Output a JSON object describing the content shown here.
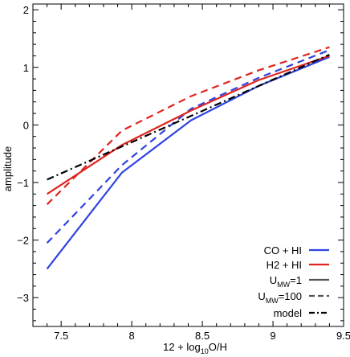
{
  "chart_data": {
    "type": "line",
    "xlabel_prefix": "12 + log",
    "xlabel_sub": "10",
    "xlabel_suffix": "O/H",
    "ylabel": "amplitude",
    "xlim": [
      7.3,
      9.5
    ],
    "ylim": [
      -3.5,
      2.1
    ],
    "xticks": [
      7.5,
      8,
      8.5,
      9,
      9.5
    ],
    "xtick_labels": [
      "7.5",
      "8",
      "8.5",
      "9",
      "9.5"
    ],
    "yticks": [
      -3,
      -2,
      -1,
      0,
      1,
      2
    ],
    "ytick_labels": [
      "−3",
      "−2",
      "−1",
      "0",
      "1",
      "2"
    ],
    "grid": false,
    "legend_position": "bottom-right",
    "colors": {
      "co_hi": "#2f43e0",
      "h2_hi": "#e0241f",
      "model": "#000000",
      "umw_key": "#555555"
    },
    "series": [
      {
        "key": "co_hi",
        "color": "#2f43e0",
        "dash": "solid",
        "x": [
          7.4,
          7.93,
          8.42,
          8.9,
          9.4
        ],
        "y": [
          -2.5,
          -0.83,
          0.08,
          0.68,
          1.18
        ]
      },
      {
        "key": "co_hi",
        "color": "#2f43e0",
        "dash": "dashed",
        "x": [
          7.4,
          7.93,
          8.42,
          8.9,
          9.4
        ],
        "y": [
          -2.05,
          -0.7,
          0.28,
          0.82,
          1.3
        ]
      },
      {
        "key": "h2_hi",
        "color": "#e0241f",
        "dash": "solid",
        "x": [
          7.4,
          7.93,
          8.42,
          8.9,
          9.4
        ],
        "y": [
          -1.2,
          -0.35,
          0.25,
          0.78,
          1.2
        ]
      },
      {
        "key": "h2_hi",
        "color": "#e0241f",
        "dash": "dashed",
        "x": [
          7.4,
          7.93,
          8.42,
          8.9,
          9.4
        ],
        "y": [
          -1.38,
          -0.1,
          0.5,
          0.95,
          1.35
        ]
      },
      {
        "key": "model",
        "color": "#000000",
        "dash": "dashdot",
        "x": [
          7.4,
          9.4
        ],
        "y": [
          -0.95,
          1.22
        ]
      }
    ],
    "legend": [
      {
        "key": "co_hi",
        "label": "CO + HI",
        "color": "#2f43e0",
        "dash": "solid"
      },
      {
        "key": "h2_hi",
        "label": "H2 + HI",
        "color": "#e0241f",
        "dash": "solid"
      },
      {
        "key": "umw1",
        "label_main": "U",
        "label_sub": "MW",
        "label_tail": "=1",
        "color": "#555555",
        "dash": "solid"
      },
      {
        "key": "umw100",
        "label_main": "U",
        "label_sub": "MW",
        "label_tail": "=100",
        "color": "#555555",
        "dash": "dashed"
      },
      {
        "key": "model",
        "label": "model",
        "color": "#000000",
        "dash": "dashdot"
      }
    ]
  }
}
